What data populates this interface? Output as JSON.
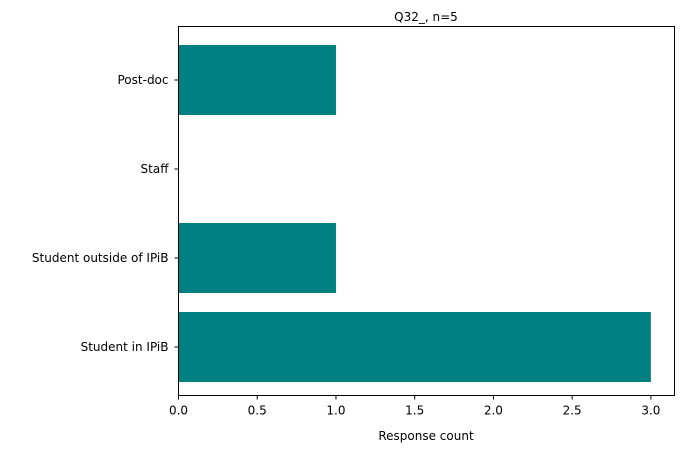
{
  "chart_data": {
    "type": "bar",
    "orientation": "horizontal",
    "title": "Q32_, n=5",
    "xlabel": "Response count",
    "ylabel": "",
    "categories": [
      "Student in IPiB",
      "Student outside of IPiB",
      "Staff",
      "Post-doc"
    ],
    "values": [
      3,
      1,
      0,
      1
    ],
    "xlim": [
      0,
      3.15
    ],
    "xticks": [
      "0.0",
      "0.5",
      "1.0",
      "1.5",
      "2.0",
      "2.5",
      "3.0"
    ],
    "grid": false,
    "legend": "none",
    "bar_color": "#008080"
  }
}
